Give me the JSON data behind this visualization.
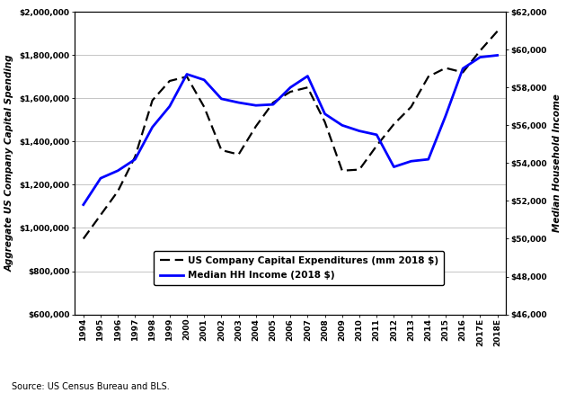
{
  "years": [
    "1994",
    "1995",
    "1996",
    "1997",
    "1998",
    "1999",
    "2000",
    "2001",
    "2002",
    "2003",
    "2004",
    "2005",
    "2006",
    "2007",
    "2008",
    "2009",
    "2010",
    "2011",
    "2012",
    "2013",
    "2014",
    "2015",
    "2016",
    "2017E",
    "2018E"
  ],
  "capex": [
    950000,
    1060000,
    1170000,
    1330000,
    1590000,
    1680000,
    1700000,
    1560000,
    1360000,
    1340000,
    1470000,
    1580000,
    1630000,
    1650000,
    1490000,
    1265000,
    1270000,
    1380000,
    1480000,
    1560000,
    1700000,
    1740000,
    1720000,
    1820000,
    1910000
  ],
  "median_hh": [
    51800,
    53200,
    53600,
    54200,
    55900,
    57000,
    58700,
    58400,
    57400,
    57200,
    57050,
    57100,
    58000,
    58600,
    56600,
    56000,
    55700,
    55500,
    53800,
    54100,
    54200,
    56500,
    59000,
    59600,
    59700
  ],
  "capex_color": "#000000",
  "median_color": "#0000FF",
  "left_ylabel": "Aggregate US Company Capital Spending",
  "right_ylabel": "Median Household Income",
  "left_ylim": [
    600000,
    2000000
  ],
  "right_ylim": [
    46000,
    62000
  ],
  "left_yticks": [
    600000,
    800000,
    1000000,
    1200000,
    1400000,
    1600000,
    1800000,
    2000000
  ],
  "right_yticks": [
    46000,
    48000,
    50000,
    52000,
    54000,
    56000,
    58000,
    60000,
    62000
  ],
  "source_text": "Source: US Census Bureau and BLS.",
  "legend_capex": "US Company Capital Expenditures (mm 2018 $)",
  "legend_median": "Median HH Income (2018 $)",
  "background_color": "#FFFFFF",
  "grid_color": "#BBBBBB"
}
